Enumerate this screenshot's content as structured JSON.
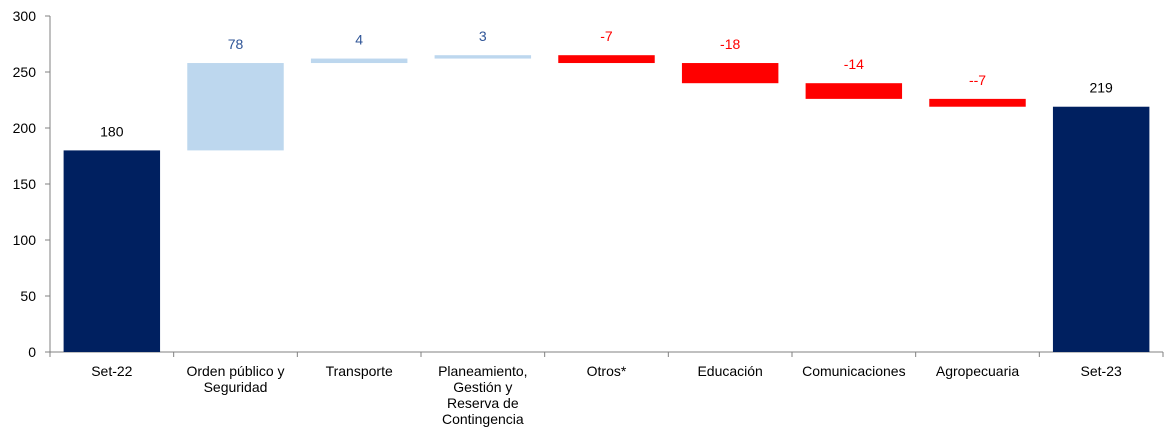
{
  "chart_data": {
    "type": "bar",
    "subtype": "waterfall",
    "title": "",
    "xlabel": "",
    "ylabel": "",
    "ylim": [
      0,
      300
    ],
    "yticks": [
      0,
      50,
      100,
      150,
      200,
      250,
      300
    ],
    "grid": false,
    "legend": "none",
    "categories": [
      "Set-22",
      "Orden público y Seguridad",
      "Transporte",
      "Planeamiento, Gestión y Reserva de Contingencia",
      "Otros*",
      "Educación",
      "Comunicaciones",
      "Agropecuaria",
      "Set-23"
    ],
    "category_lines": [
      [
        "Set-22"
      ],
      [
        "Orden público y",
        "Seguridad"
      ],
      [
        "Transporte"
      ],
      [
        "Planeamiento,",
        "Gestión y",
        "Reserva de",
        "Contingencia"
      ],
      [
        "Otros*"
      ],
      [
        "Educación"
      ],
      [
        "Comunicaciones"
      ],
      [
        "Agropecuaria"
      ],
      [
        "Set-23"
      ]
    ],
    "values": [
      180,
      78,
      4,
      3,
      -7,
      -18,
      -14,
      -7,
      219
    ],
    "bar_kinds": [
      "total",
      "increase",
      "increase",
      "increase",
      "decrease",
      "decrease",
      "decrease",
      "decrease",
      "total"
    ],
    "data_labels": [
      "180",
      "78",
      "4",
      "3",
      "-7",
      "-18",
      "-14",
      "--7",
      "219"
    ],
    "colors": {
      "total": "#002060",
      "increase": "#BDD7EE",
      "decrease": "#FF0000",
      "increase_label": "#2F5597",
      "decrease_label": "#FF0000",
      "total_label": "#000000",
      "axis": "#808080"
    }
  }
}
